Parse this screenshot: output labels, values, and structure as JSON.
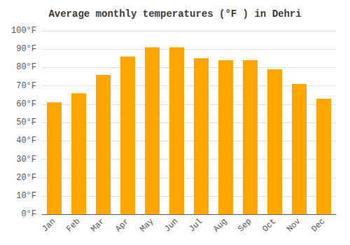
{
  "chart_data": {
    "type": "bar",
    "title": "Average monthly temperatures (°F ) in Dehri",
    "categories": [
      "Jan",
      "Feb",
      "Mar",
      "Apr",
      "May",
      "Jun",
      "Jul",
      "Aug",
      "Sep",
      "Oct",
      "Nov",
      "Dec"
    ],
    "values": [
      61,
      66,
      76,
      86,
      91,
      91,
      85,
      84,
      84,
      79,
      71,
      63
    ],
    "color": "#FFA500",
    "ylim": [
      0,
      100
    ],
    "yticks": [
      {
        "value": 0,
        "label": "0°F"
      },
      {
        "value": 10,
        "label": "10°F"
      },
      {
        "value": 20,
        "label": "20°F"
      },
      {
        "value": 30,
        "label": "30°F"
      },
      {
        "value": 40,
        "label": "40°F"
      },
      {
        "value": 50,
        "label": "50°F"
      },
      {
        "value": 60,
        "label": "60°F"
      },
      {
        "value": 70,
        "label": "70°F"
      },
      {
        "value": 80,
        "label": "80°F"
      },
      {
        "value": 90,
        "label": "90°F"
      },
      {
        "value": 100,
        "label": "100°F"
      }
    ],
    "grid": true
  }
}
